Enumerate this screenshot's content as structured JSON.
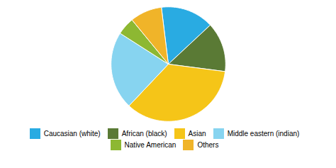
{
  "chart_data": {
    "type": "pie",
    "categories": [
      "Caucasian (white)",
      "African (black)",
      "Asian",
      "Middle eastern (indian)",
      "Native American",
      "Others"
    ],
    "values": [
      15,
      14,
      35,
      22,
      5,
      9
    ],
    "colors": [
      "#29abe2",
      "#5a7a35",
      "#f5c518",
      "#87d4f0",
      "#8db832",
      "#f0b429"
    ],
    "legend": "bottom"
  }
}
